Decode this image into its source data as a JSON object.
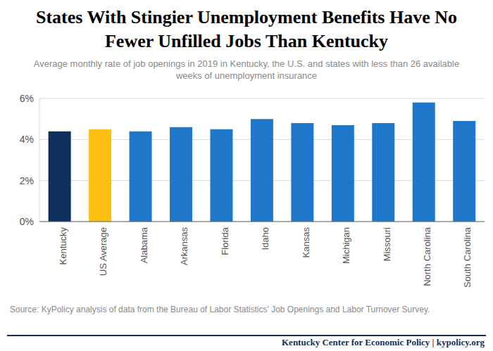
{
  "chart_data": {
    "type": "bar",
    "title": "States With Stingier Unemployment Benefits Have No Fewer Unfilled Jobs Than Kentucky",
    "subtitle": "Average monthly rate of job openings in 2019 in Kentucky, the U.S. and states with less than 26 available weeks of unemployment insurance",
    "source": "Source: KyPolicy analysis of data from the Bureau of Labor Statistics' Job Openings and Labor Turnover Survey.",
    "credit": "Kentucky Center for Economic Policy | kypolicy.org",
    "categories": [
      "Kentucky",
      "US Average",
      "Alabama",
      "Arkansas",
      "Florida",
      "Idaho",
      "Kansas",
      "Michigan",
      "Missouri",
      "North Carolina",
      "South Carolina"
    ],
    "values": [
      4.4,
      4.5,
      4.4,
      4.6,
      4.5,
      5.0,
      4.8,
      4.7,
      4.8,
      5.8,
      4.9
    ],
    "colors": [
      "#0e2f5c",
      "#fdbf11",
      "#1f77c9",
      "#1f77c9",
      "#1f77c9",
      "#1f77c9",
      "#1f77c9",
      "#1f77c9",
      "#1f77c9",
      "#1f77c9",
      "#1f77c9"
    ],
    "ylim": [
      0,
      6
    ],
    "yticks": [
      {
        "value": 0,
        "label": "0%"
      },
      {
        "value": 2,
        "label": "2%"
      },
      {
        "value": 4,
        "label": "4%"
      },
      {
        "value": 6,
        "label": "6%"
      }
    ],
    "grid": true
  }
}
